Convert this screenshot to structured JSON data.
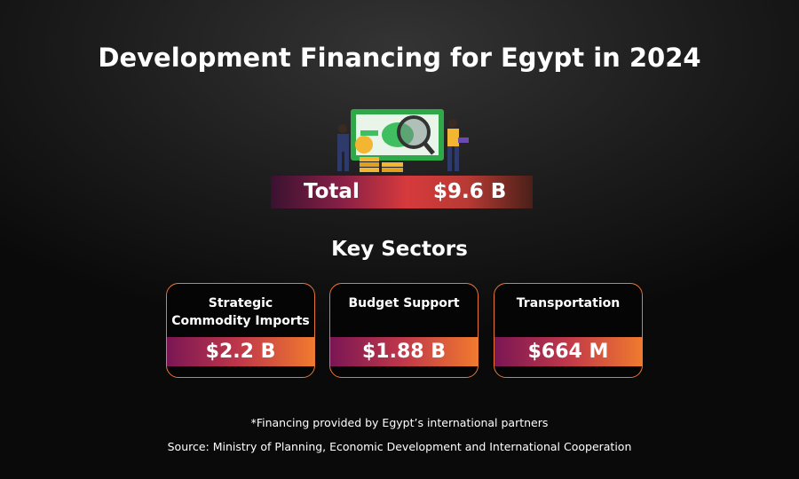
{
  "header": {
    "title": "Development Financing for Egypt in 2024"
  },
  "total": {
    "label": "Total",
    "value": "$9.6 B"
  },
  "sectors": {
    "title": "Key Sectors",
    "items": [
      {
        "name": "Strategic Commodity Imports",
        "value": "$2.2 B"
      },
      {
        "name": "Budget Support",
        "value": "$1.88 B"
      },
      {
        "name": "Transportation",
        "value": "$664 M"
      }
    ]
  },
  "footer": {
    "note": "*Financing provided by Egypt’s international partners",
    "source": "Source: Ministry of Planning, Economic Development and International Cooperation"
  }
}
